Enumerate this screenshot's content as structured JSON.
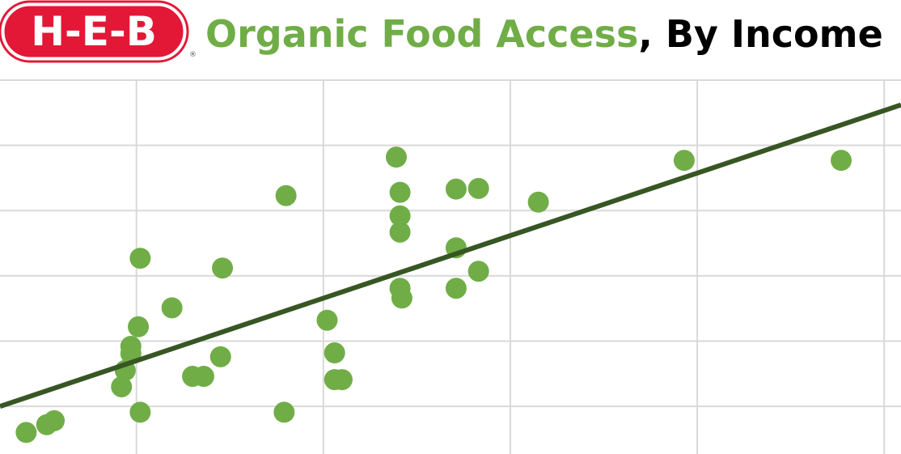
{
  "chart_data": {
    "type": "scatter",
    "logo": "H-E-B",
    "logo_mark": "®",
    "title": "Organic Food Access",
    "title_suffix": ", By Income",
    "color": "#70ad47",
    "title_color": "#70ad47",
    "trend_color": "#375623",
    "logo_color": "#e31837",
    "grid": true,
    "xlim": [
      0.27,
      5.09
    ],
    "ylim": [
      0.27,
      6
    ],
    "xticks": [
      1,
      2,
      3,
      4,
      5
    ],
    "yticks": [
      1,
      2,
      3,
      4,
      5,
      6
    ],
    "x": [
      0.41,
      0.52,
      0.56,
      1.02,
      1.01,
      0.97,
      0.97,
      0.94,
      0.92,
      1.02,
      1.19,
      1.46,
      1.45,
      1.3,
      1.36,
      1.8,
      1.79,
      2.02,
      2.06,
      2.06,
      2.1,
      2.39,
      2.41,
      2.41,
      2.41,
      2.41,
      2.42,
      2.71,
      2.83,
      2.71,
      2.83,
      2.71,
      3.15,
      3.93,
      4.77
    ],
    "values": [
      0.6,
      0.72,
      0.78,
      3.27,
      2.22,
      1.92,
      1.81,
      1.55,
      1.3,
      0.91,
      2.51,
      3.12,
      1.76,
      1.46,
      1.46,
      4.23,
      0.91,
      2.32,
      1.82,
      1.41,
      1.41,
      4.82,
      4.28,
      3.92,
      3.67,
      2.81,
      2.66,
      4.33,
      4.34,
      3.43,
      3.07,
      2.81,
      4.13,
      4.77,
      4.77
    ],
    "trendline": {
      "x": [
        0.27,
        5.09
      ],
      "y": [
        1.0,
        5.62
      ]
    }
  }
}
